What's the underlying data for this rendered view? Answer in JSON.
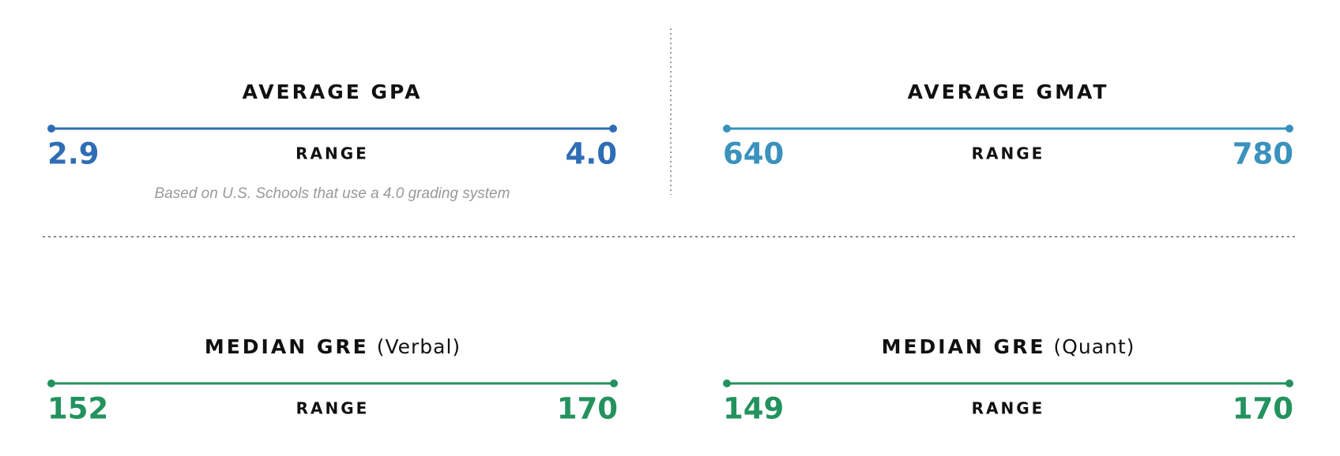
{
  "panels": [
    {
      "title": "AVERAGE GPA",
      "range_label": "RANGE",
      "min": "2.9",
      "max": "4.0",
      "note": "Based on U.S. Schools that use a 4.0 grading system",
      "color": "#2f6db5"
    },
    {
      "title": "AVERAGE GMAT",
      "range_label": "RANGE",
      "min": "640",
      "max": "780",
      "color": "#3a92bd"
    },
    {
      "title": "MEDIAN GRE",
      "qualifier": "(Verbal)",
      "range_label": "RANGE",
      "min": "152",
      "max": "170",
      "color": "#23925e"
    },
    {
      "title": "MEDIAN GRE",
      "qualifier": "(Quant)",
      "range_label": "RANGE",
      "min": "149",
      "max": "170",
      "color": "#23925e"
    }
  ]
}
